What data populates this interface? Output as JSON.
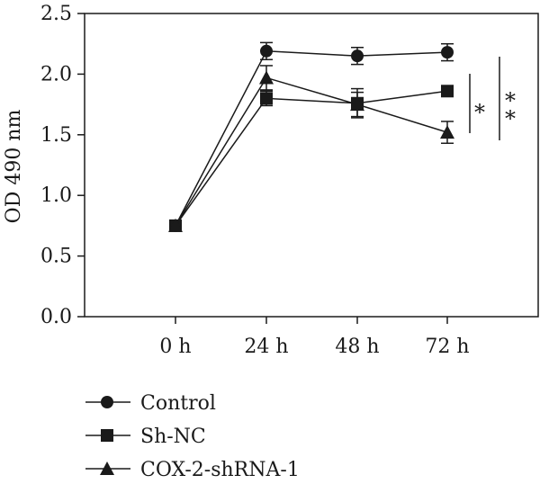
{
  "chart_data": {
    "type": "line",
    "xlabel": "",
    "ylabel": "OD 490 nm",
    "categories": [
      "0 h",
      "24 h",
      "48 h",
      "72 h"
    ],
    "ylim": [
      0.0,
      2.5
    ],
    "yticks": [
      "0.0",
      "0.5",
      "1.0",
      "1.5",
      "2.0",
      "2.5"
    ],
    "series": [
      {
        "name": "Control",
        "marker": "circle",
        "values": [
          0.75,
          2.19,
          2.15,
          2.18
        ],
        "errors": [
          0.02,
          0.07,
          0.07,
          0.07
        ]
      },
      {
        "name": "Sh-NC",
        "marker": "square",
        "values": [
          0.75,
          1.8,
          1.76,
          1.86
        ],
        "errors": [
          0.02,
          0.06,
          0.12,
          0.04
        ]
      },
      {
        "name": "COX-2-shRNA-1",
        "marker": "triangle",
        "values": [
          0.75,
          1.97,
          1.75,
          1.52
        ],
        "errors": [
          0.02,
          0.1,
          0.1,
          0.09
        ]
      }
    ],
    "annotations": [
      {
        "label": "*",
        "from_series": "Sh-NC",
        "to_series": "COX-2-shRNA-1",
        "at": "72 h"
      },
      {
        "label": "* *",
        "from_series": "Control",
        "to_series": "COX-2-shRNA-1",
        "at": "72 h"
      }
    ],
    "legend_position": "bottom-left",
    "grid": false,
    "line_color": "#1a1a1a"
  }
}
